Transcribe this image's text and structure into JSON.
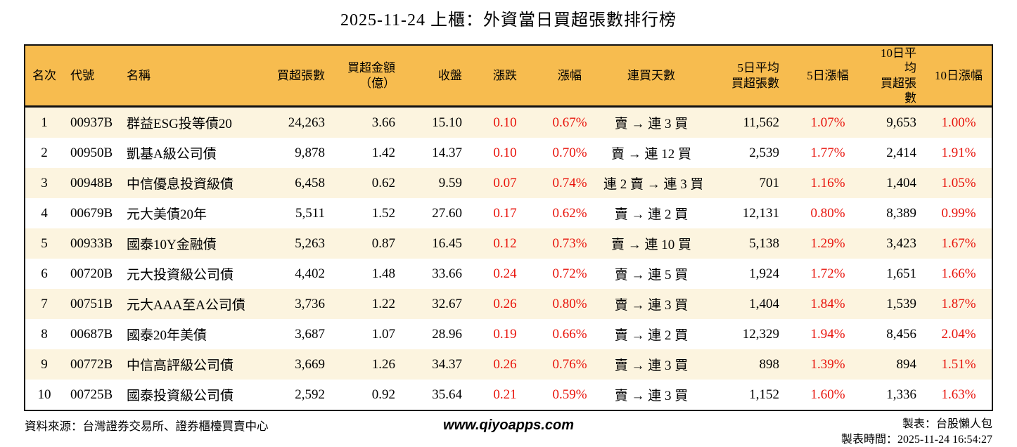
{
  "header": {
    "title": "2025-11-24 上櫃：外資當日買超張數排行榜"
  },
  "colors": {
    "header_bg": "#F7BC4F",
    "row_stripe_bg": "#FCF4DF",
    "row_bg": "#FFFFFF",
    "value_red": "#E8120A",
    "text_black": "#000000",
    "border_black": "#111111"
  },
  "table": {
    "columns": [
      {
        "key": "rank",
        "label": "名次"
      },
      {
        "key": "code",
        "label": "代號"
      },
      {
        "key": "name",
        "label": "名稱"
      },
      {
        "key": "net-buy-volume",
        "label": "買超張數"
      },
      {
        "key": "net-buy-amount",
        "label": "買超金額\n（億）"
      },
      {
        "key": "close",
        "label": "收盤"
      },
      {
        "key": "change",
        "label": "漲跌"
      },
      {
        "key": "change-pct",
        "label": "漲幅"
      },
      {
        "key": "buy-streak",
        "label": "連買天數"
      },
      {
        "key": "avg5-net-buy",
        "label": "5日平均\n買超張數"
      },
      {
        "key": "pct5",
        "label": "5日漲幅"
      },
      {
        "key": "avg10-net-buy",
        "label": "10日平均\n買超張數"
      },
      {
        "key": "pct10",
        "label": "10日漲幅"
      }
    ],
    "red_value_columns": [
      6,
      7,
      10,
      12
    ]
  },
  "chart_data": {
    "type": "table",
    "title": "2025-11-24 上櫃：外資當日買超張數排行榜",
    "columns": [
      "名次",
      "代號",
      "名稱",
      "買超張數",
      "買超金額（億）",
      "收盤",
      "漲跌",
      "漲幅",
      "連買天數",
      "5日平均買超張數",
      "5日漲幅",
      "10日平均買超張數",
      "10日漲幅"
    ],
    "rows": [
      [
        "1",
        "00937B",
        "群益ESG投等債20",
        "24,263",
        "3.66",
        "15.10",
        "0.10",
        "0.67%",
        "賣 → 連 3 買",
        "11,562",
        "1.07%",
        "9,653",
        "1.00%"
      ],
      [
        "2",
        "00950B",
        "凱基A級公司債",
        "9,878",
        "1.42",
        "14.37",
        "0.10",
        "0.70%",
        "賣 → 連 12 買",
        "2,539",
        "1.77%",
        "2,414",
        "1.91%"
      ],
      [
        "3",
        "00948B",
        "中信優息投資級債",
        "6,458",
        "0.62",
        "9.59",
        "0.07",
        "0.74%",
        "連 2 賣 → 連 3 買",
        "701",
        "1.16%",
        "1,404",
        "1.05%"
      ],
      [
        "4",
        "00679B",
        "元大美債20年",
        "5,511",
        "1.52",
        "27.60",
        "0.17",
        "0.62%",
        "賣 → 連 2 買",
        "12,131",
        "0.80%",
        "8,389",
        "0.99%"
      ],
      [
        "5",
        "00933B",
        "國泰10Y金融債",
        "5,263",
        "0.87",
        "16.45",
        "0.12",
        "0.73%",
        "賣 → 連 10 買",
        "5,138",
        "1.29%",
        "3,423",
        "1.67%"
      ],
      [
        "6",
        "00720B",
        "元大投資級公司債",
        "4,402",
        "1.48",
        "33.66",
        "0.24",
        "0.72%",
        "賣 → 連 5 買",
        "1,924",
        "1.72%",
        "1,651",
        "1.66%"
      ],
      [
        "7",
        "00751B",
        "元大AAA至A公司債",
        "3,736",
        "1.22",
        "32.67",
        "0.26",
        "0.80%",
        "賣 → 連 3 買",
        "1,404",
        "1.84%",
        "1,539",
        "1.87%"
      ],
      [
        "8",
        "00687B",
        "國泰20年美債",
        "3,687",
        "1.07",
        "28.96",
        "0.19",
        "0.66%",
        "賣 → 連 2 買",
        "12,329",
        "1.94%",
        "8,456",
        "2.04%"
      ],
      [
        "9",
        "00772B",
        "中信高評級公司債",
        "3,669",
        "1.26",
        "34.37",
        "0.26",
        "0.76%",
        "賣 → 連 3 買",
        "898",
        "1.39%",
        "894",
        "1.51%"
      ],
      [
        "10",
        "00725B",
        "國泰投資級公司債",
        "2,592",
        "0.92",
        "35.64",
        "0.21",
        "0.59%",
        "賣 → 連 3 買",
        "1,152",
        "1.60%",
        "1,336",
        "1.63%"
      ]
    ]
  },
  "footer": {
    "source": "資料來源：台灣證券交易所、證券櫃檯買賣中心",
    "site": "www.qiyoapps.com",
    "author": "製表：台股懶人包",
    "generated_at": "製表時間：2025-11-24 16:54:27"
  }
}
